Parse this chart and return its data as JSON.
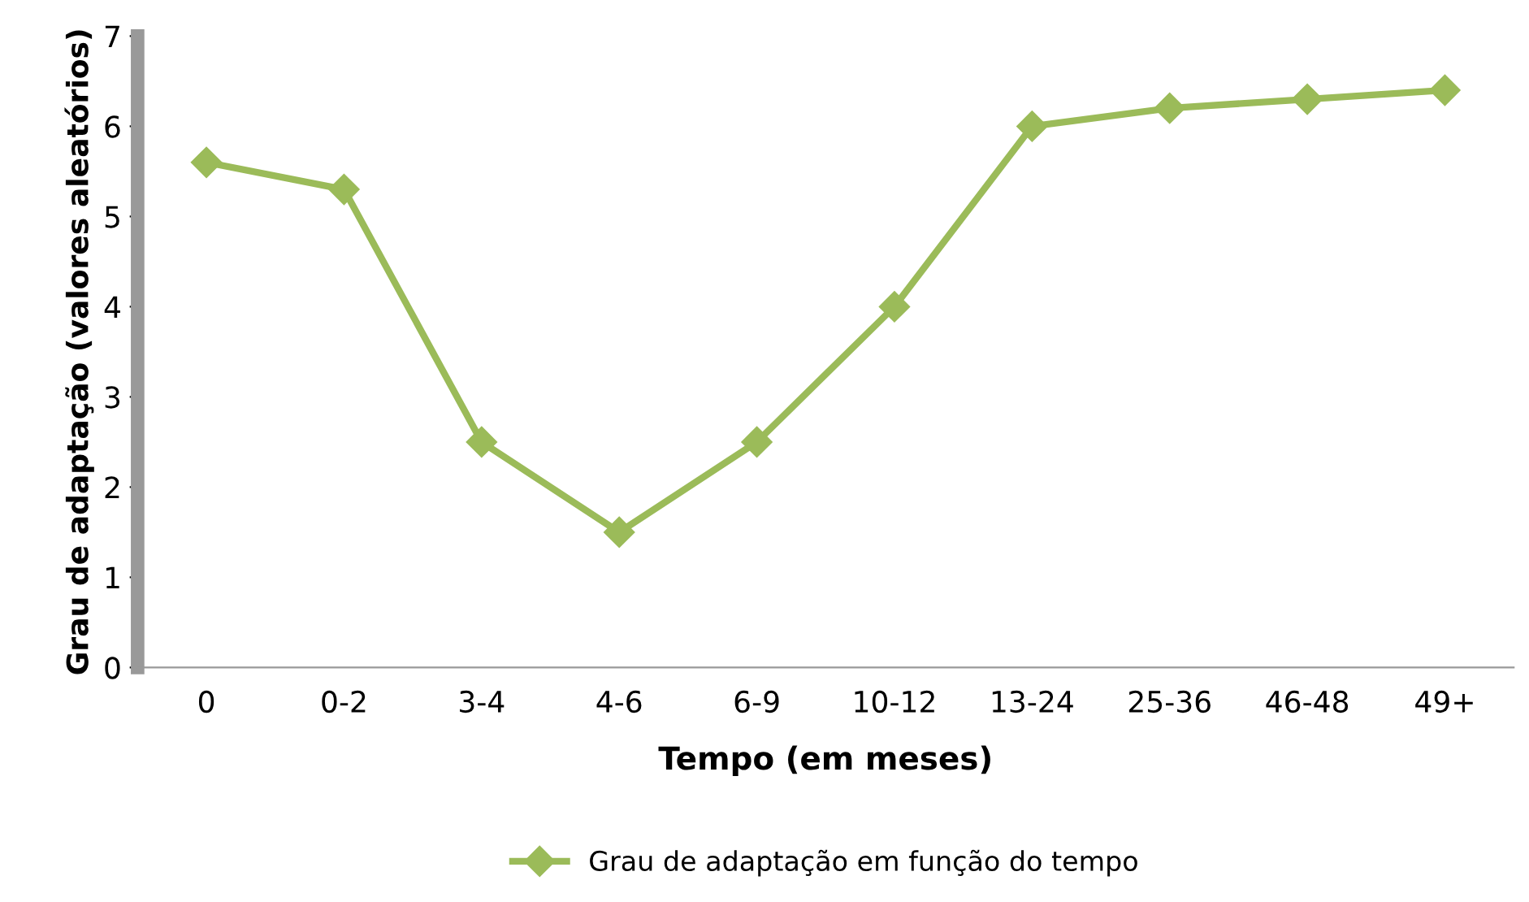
{
  "chart_data": {
    "type": "line",
    "xlabel": "Tempo (em meses)",
    "ylabel": "Grau de adaptação (valores aleatórios)",
    "categories": [
      "0",
      "0-2",
      "3-4",
      "4-6",
      "6-9",
      "10-12",
      "13-24",
      "25-36",
      "46-48",
      "49+"
    ],
    "series": [
      {
        "name": "Grau de adaptação em função do tempo",
        "color": "#9bbb59",
        "values": [
          5.6,
          5.3,
          2.5,
          1.5,
          2.5,
          4.0,
          6.0,
          6.2,
          6.3,
          6.4
        ]
      }
    ],
    "ylim": [
      0,
      7
    ],
    "yticks": [
      0,
      1,
      2,
      3,
      4,
      5,
      6,
      7
    ],
    "grid": false,
    "legend": "bottom",
    "marker": "diamond",
    "line_style": "solid"
  }
}
